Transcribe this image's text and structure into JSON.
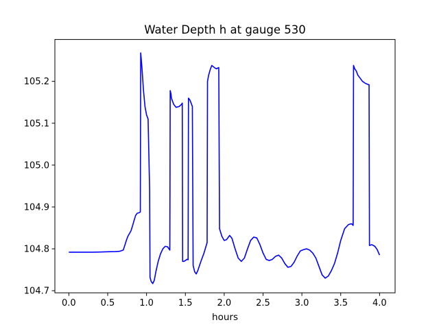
{
  "chart_data": {
    "type": "line",
    "title": "Water Depth h at gauge 530",
    "xlabel": "hours",
    "ylabel": "",
    "xlim": [
      -0.18,
      4.2
    ],
    "ylim": [
      104.695,
      105.3
    ],
    "grid": false,
    "legend": "none",
    "x_ticks": [
      0.0,
      0.5,
      1.0,
      1.5,
      2.0,
      2.5,
      3.0,
      3.5,
      4.0
    ],
    "x_tick_labels": [
      "0.0",
      "0.5",
      "1.0",
      "1.5",
      "2.0",
      "2.5",
      "3.0",
      "3.5",
      "4.0"
    ],
    "y_ticks": [
      104.7,
      104.8,
      104.9,
      105.0,
      105.1,
      105.2
    ],
    "y_tick_labels": [
      "104.7",
      "104.8",
      "104.9",
      "105.0",
      "105.1",
      "105.2"
    ],
    "series": [
      {
        "color": "#0000ff",
        "x": [
          0.0,
          0.1,
          0.2,
          0.3,
          0.4,
          0.5,
          0.6,
          0.65,
          0.7,
          0.72,
          0.74,
          0.76,
          0.8,
          0.82,
          0.84,
          0.86,
          0.88,
          0.9,
          0.92,
          0.925,
          0.94,
          0.96,
          0.98,
          1.0,
          1.02,
          1.04,
          1.045,
          1.06,
          1.08,
          1.1,
          1.12,
          1.15,
          1.18,
          1.21,
          1.24,
          1.27,
          1.3,
          1.305,
          1.315,
          1.32,
          1.35,
          1.38,
          1.42,
          1.45,
          1.46,
          1.465,
          1.48,
          1.5,
          1.52,
          1.535,
          1.54,
          1.56,
          1.58,
          1.59,
          1.6,
          1.62,
          1.64,
          1.66,
          1.7,
          1.74,
          1.78,
          1.785,
          1.8,
          1.82,
          1.84,
          1.86,
          1.88,
          1.9,
          1.92,
          1.93,
          1.94,
          1.97,
          2.0,
          2.03,
          2.07,
          2.1,
          2.14,
          2.18,
          2.22,
          2.26,
          2.3,
          2.34,
          2.38,
          2.42,
          2.46,
          2.5,
          2.54,
          2.58,
          2.62,
          2.66,
          2.7,
          2.74,
          2.78,
          2.82,
          2.86,
          2.9,
          2.94,
          2.98,
          3.02,
          3.06,
          3.1,
          3.14,
          3.18,
          3.22,
          3.26,
          3.3,
          3.34,
          3.38,
          3.42,
          3.46,
          3.5,
          3.55,
          3.6,
          3.64,
          3.66,
          3.665,
          3.68,
          3.7,
          3.72,
          3.74,
          3.78,
          3.82,
          3.86,
          3.865,
          3.87,
          3.9,
          3.94,
          3.97,
          4.0
        ],
        "y": [
          104.792,
          104.792,
          104.792,
          104.792,
          104.7925,
          104.793,
          104.7935,
          104.794,
          104.797,
          104.808,
          104.82,
          104.83,
          104.843,
          104.855,
          104.868,
          104.88,
          104.885,
          104.886,
          104.888,
          105.268,
          105.235,
          105.18,
          105.14,
          105.12,
          105.11,
          104.94,
          104.732,
          104.722,
          104.717,
          104.725,
          104.745,
          104.77,
          104.788,
          104.8,
          104.806,
          104.805,
          104.797,
          105.178,
          105.17,
          105.16,
          105.145,
          105.138,
          105.14,
          105.145,
          105.148,
          104.77,
          104.77,
          104.772,
          104.775,
          104.774,
          105.16,
          105.155,
          105.145,
          105.14,
          104.76,
          104.745,
          104.74,
          104.748,
          104.77,
          104.79,
          104.815,
          105.2,
          105.215,
          105.228,
          105.238,
          105.235,
          105.232,
          105.23,
          105.232,
          105.233,
          104.848,
          104.83,
          104.82,
          104.822,
          104.832,
          104.825,
          104.8,
          104.778,
          104.77,
          104.778,
          104.8,
          104.82,
          104.828,
          104.826,
          104.81,
          104.79,
          104.775,
          104.772,
          104.775,
          104.782,
          104.785,
          104.778,
          104.765,
          104.756,
          104.758,
          104.768,
          104.783,
          104.795,
          104.798,
          104.8,
          104.797,
          104.79,
          104.778,
          104.758,
          104.738,
          104.73,
          104.735,
          104.748,
          104.765,
          104.79,
          104.82,
          104.848,
          104.858,
          104.86,
          104.856,
          105.238,
          105.23,
          105.225,
          105.215,
          105.21,
          105.2,
          105.195,
          105.192,
          105.192,
          104.808,
          104.81,
          104.806,
          104.798,
          104.785
        ]
      }
    ]
  }
}
